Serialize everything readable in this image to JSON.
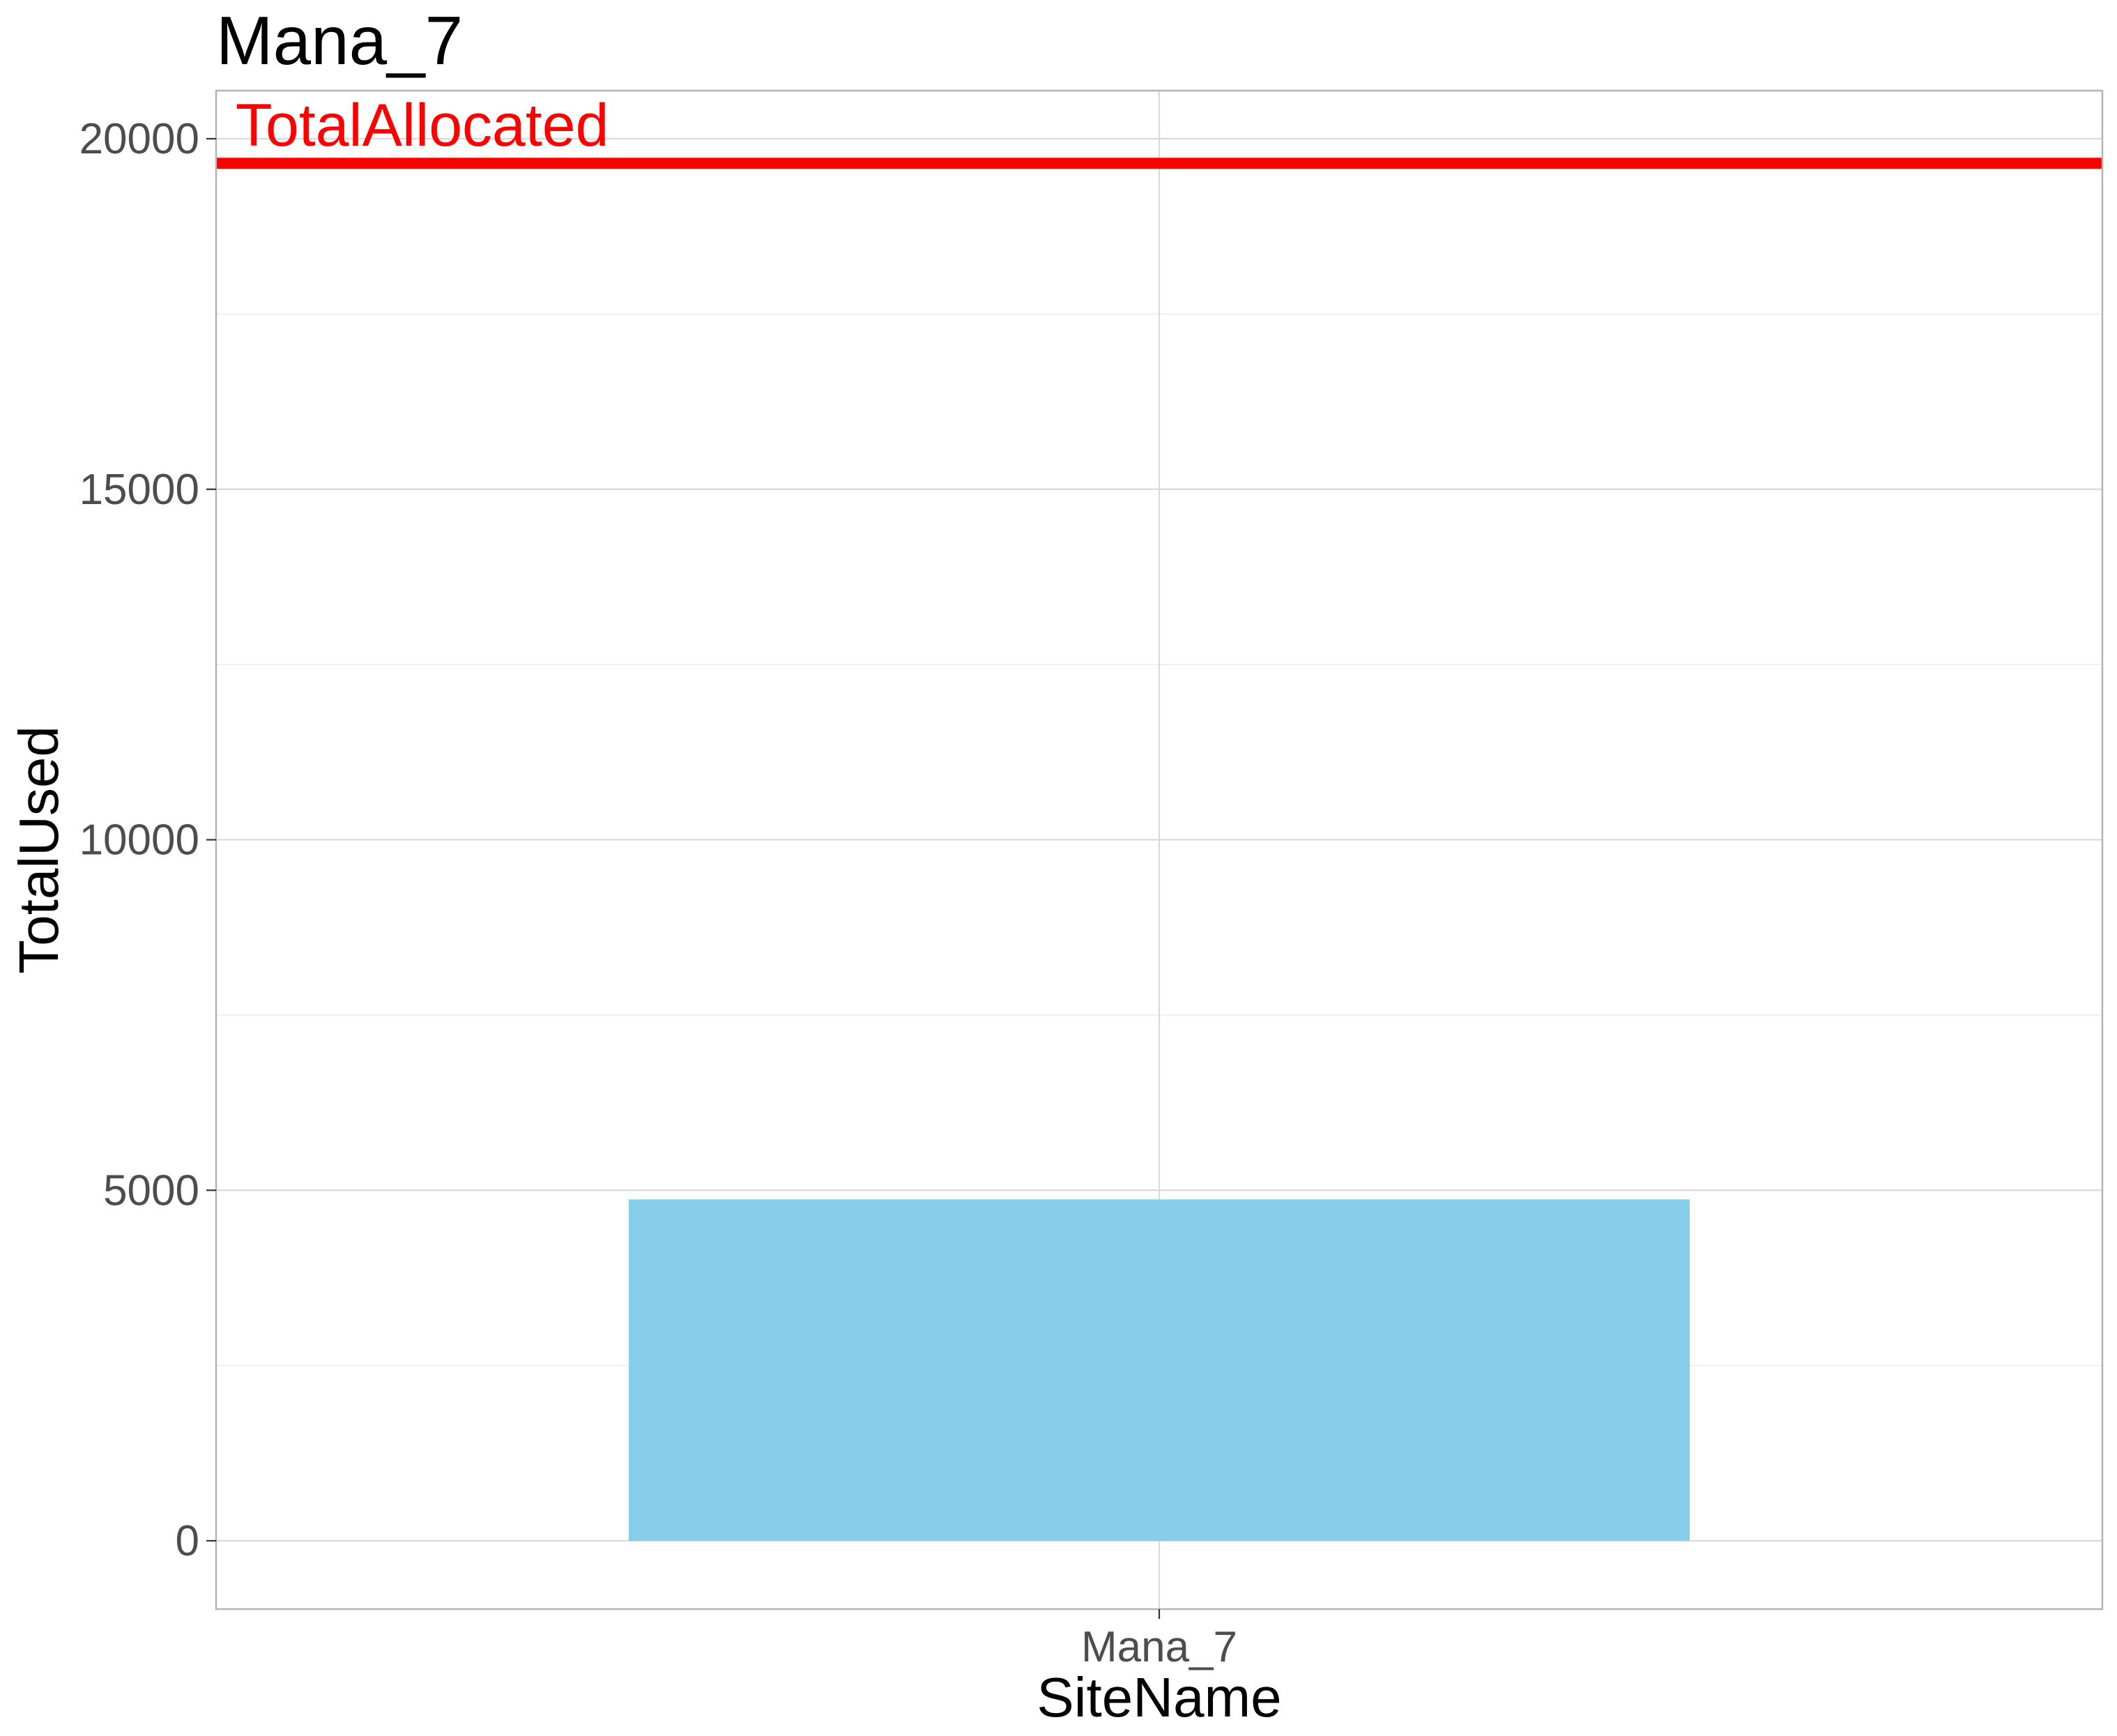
{
  "chart_data": {
    "type": "bar",
    "title": "Mana_7",
    "xlabel": "SiteName",
    "ylabel": "TotalUsed",
    "categories": [
      "Mana_7"
    ],
    "series": [
      {
        "values": [
          4870
        ],
        "color": "#87CEEB"
      }
    ],
    "yticks": [
      0,
      5000,
      10000,
      15000,
      20000
    ],
    "ylim": [
      -1000,
      20700
    ],
    "grid": true,
    "reference_line": {
      "label": "TotalAllocated",
      "value": 19650,
      "color": "#FF0000"
    },
    "legend": "none"
  }
}
